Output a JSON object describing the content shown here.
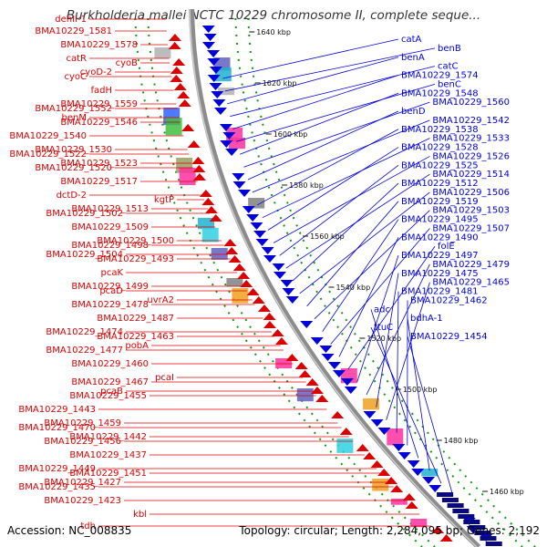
{
  "title": "Burkholderia mallei NCTC 10229 chromosome II, complete seque...",
  "footer": {
    "accession": "Accession: NC_008835",
    "summary": "Topology: circular; Length: 2,284,095 bp; Genes: 2,192"
  },
  "colors": {
    "forward_genes": "#0000dd",
    "reverse_genes": "#dd0000",
    "backbone": "#8c8c8c",
    "orf_marks": "#119911"
  },
  "kbp_ticks": [
    "1640 kbp",
    "1620 kbp",
    "1600 kbp",
    "1580 kbp",
    "1560 kbp",
    "1540 kbp",
    "1520 kbp",
    "1500 kbp",
    "1480 kbp",
    "1460 kbp"
  ],
  "left_labels": [
    "dehII-1",
    "BMA10229_1581",
    "BMA10229_1578",
    "catR",
    "cyoD-2",
    "cyoB",
    "cyoC",
    "fadH",
    "BMA10229_1559",
    "benM",
    "BMA10229_1552",
    "BMA10229_1546",
    "BMA10229_1540",
    "BMA10229_1530",
    "BMA10229_1523",
    "BMA10229_1522",
    "BMA10229_1520",
    "BMA10229_1517",
    "dctD-2",
    "BMA10229_1513",
    "kgtP",
    "BMA10229_1502",
    "BMA10229_1509",
    "BMA10229_1500",
    "BMA10229_1504",
    "BMA10229_1498",
    "BMA10229_1493",
    "pcaK",
    "BMA10229_1499",
    "uvrA2",
    "pcaD",
    "BMA10229_1478",
    "BMA10229_1487",
    "BMA10229_1474",
    "pobA",
    "BMA10229_1463",
    "BMA10229_1477",
    "BMA10229_1460",
    "pcaI",
    "pcaB",
    "BMA10229_1467",
    "BMA10229_1455",
    "BMA10229_1443",
    "BMA10229_1459",
    "BMA10229_1442",
    "BMA10229_1470",
    "BMA10229_1456",
    "BMA10229_1437",
    "BMA10229_1449",
    "BMA10229_1427",
    "BMA10229_1451",
    "BMA10229_1435",
    "BMA10229_1423",
    "kbl",
    "tdh"
  ],
  "right_labels": [
    "catA",
    "benB",
    "benA",
    "catC",
    "BMA10229_1574",
    "benC",
    "BMA10229_1548",
    "BMA10229_1560",
    "benD",
    "BMA10229_1542",
    "BMA10229_1538",
    "BMA10229_1533",
    "BMA10229_1528",
    "BMA10229_1526",
    "BMA10229_1525",
    "BMA10229_1514",
    "BMA10229_1512",
    "BMA10229_1506",
    "BMA10229_1519",
    "BMA10229_1503",
    "BMA10229_1495",
    "BMA10229_1507",
    "BMA10229_1490",
    "folE",
    "BMA10229_1497",
    "BMA10229_1479",
    "BMA10229_1475",
    "BMA10229_1465",
    "BMA10229_1481",
    "BMA10229_1462",
    "adc",
    "bdhA-1",
    "ttuC",
    "BMA10229_1454"
  ]
}
